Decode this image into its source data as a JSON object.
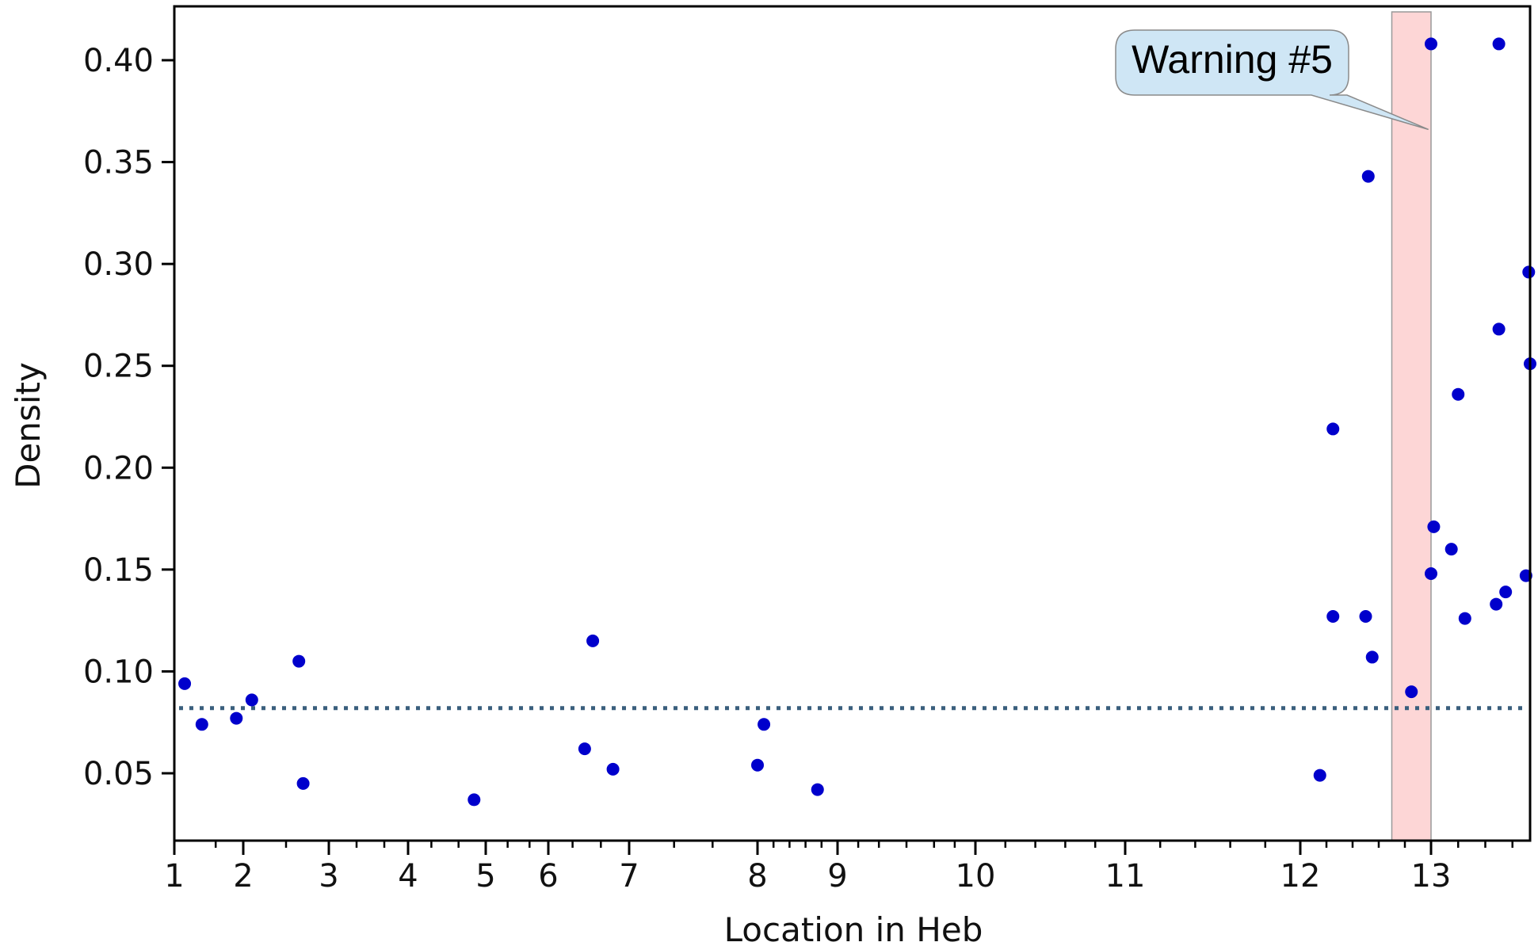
{
  "chart_data": {
    "type": "scatter",
    "xlabel": "Location in Heb",
    "ylabel": "Density",
    "xlim": [
      1,
      13.73
    ],
    "ylim": [
      0.018,
      0.426
    ],
    "x_ticks": [
      1,
      2,
      3,
      4,
      5,
      6,
      7,
      8,
      9,
      10,
      11,
      12,
      13
    ],
    "y_ticks": [
      0.05,
      0.1,
      0.15,
      0.2,
      0.25,
      0.3,
      0.35,
      0.4
    ],
    "y_tick_labels": [
      "0.05",
      "0.10",
      "0.15",
      "0.20",
      "0.25",
      "0.30",
      "0.35",
      "0.40"
    ],
    "point_color": "#0000cc",
    "reference_line": {
      "y": 0.082,
      "style": "dotted",
      "color": "#3a5f7d"
    },
    "highlight_band": {
      "x_range": [
        12.7,
        13.0
      ],
      "color": "#fdd6d6",
      "border_color": "#999999"
    },
    "annotation": {
      "text": "Warning #5",
      "fill": "#cfe6f5",
      "target_x": 12.98,
      "target_y": 0.366
    },
    "grid": false,
    "points": [
      {
        "x": 1.15,
        "y": 0.094
      },
      {
        "x": 1.4,
        "y": 0.074
      },
      {
        "x": 1.9,
        "y": 0.077
      },
      {
        "x": 2.1,
        "y": 0.086
      },
      {
        "x": 2.65,
        "y": 0.105
      },
      {
        "x": 2.7,
        "y": 0.045
      },
      {
        "x": 4.85,
        "y": 0.037
      },
      {
        "x": 6.45,
        "y": 0.062
      },
      {
        "x": 6.55,
        "y": 0.115
      },
      {
        "x": 6.8,
        "y": 0.052
      },
      {
        "x": 8.0,
        "y": 0.054
      },
      {
        "x": 8.08,
        "y": 0.074
      },
      {
        "x": 8.75,
        "y": 0.042
      },
      {
        "x": 12.15,
        "y": 0.049
      },
      {
        "x": 12.25,
        "y": 0.127
      },
      {
        "x": 12.25,
        "y": 0.219
      },
      {
        "x": 12.5,
        "y": 0.127
      },
      {
        "x": 12.52,
        "y": 0.343
      },
      {
        "x": 12.55,
        "y": 0.107
      },
      {
        "x": 12.85,
        "y": 0.09
      },
      {
        "x": 13.0,
        "y": 0.408
      },
      {
        "x": 13.0,
        "y": 0.148
      },
      {
        "x": 13.02,
        "y": 0.171
      },
      {
        "x": 13.15,
        "y": 0.16
      },
      {
        "x": 13.2,
        "y": 0.236
      },
      {
        "x": 13.25,
        "y": 0.126
      },
      {
        "x": 13.48,
        "y": 0.133
      },
      {
        "x": 13.5,
        "y": 0.408
      },
      {
        "x": 13.5,
        "y": 0.268
      },
      {
        "x": 13.55,
        "y": 0.139
      },
      {
        "x": 13.7,
        "y": 0.147
      },
      {
        "x": 13.72,
        "y": 0.296
      },
      {
        "x": 13.73,
        "y": 0.251
      }
    ]
  }
}
